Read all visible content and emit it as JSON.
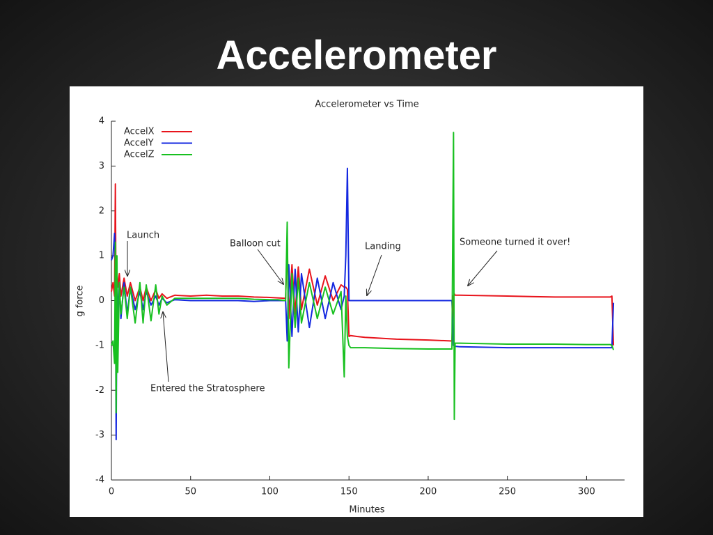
{
  "slide_title": "Accelerometer",
  "chart_data": {
    "type": "line",
    "title": "Accelerometer vs Time",
    "x_label": "Minutes",
    "y_label": "g force",
    "x": [
      0,
      1,
      2,
      2.5,
      3,
      3.5,
      4,
      5,
      6,
      8,
      10,
      12,
      15,
      18,
      20,
      22,
      25,
      28,
      30,
      32,
      35,
      40,
      50,
      60,
      70,
      80,
      90,
      100,
      105,
      110,
      111,
      112,
      114,
      116,
      118,
      120,
      125,
      130,
      135,
      140,
      145,
      147,
      148,
      149,
      150,
      151,
      155,
      160,
      180,
      200,
      215,
      216,
      216.5,
      217,
      220,
      250,
      280,
      300,
      310,
      315,
      316,
      317
    ],
    "series": [
      {
        "name": "AccelX",
        "color": "#e8141c",
        "values": [
          0.2,
          0.4,
          0.1,
          2.6,
          -0.5,
          0.6,
          0.3,
          0.6,
          0.1,
          0.5,
          0.1,
          0.4,
          0.0,
          0.3,
          0.0,
          0.3,
          0.0,
          0.25,
          0.05,
          0.15,
          0.05,
          0.12,
          0.1,
          0.12,
          0.1,
          0.1,
          0.08,
          0.07,
          0.06,
          0.05,
          1.3,
          -0.4,
          0.8,
          -0.3,
          0.75,
          -0.2,
          0.7,
          -0.1,
          0.55,
          0.0,
          0.35,
          0.3,
          0.3,
          0.25,
          -0.8,
          -0.78,
          -0.8,
          -0.82,
          -0.86,
          -0.88,
          -0.9,
          0.1,
          0.15,
          0.12,
          0.12,
          0.1,
          0.08,
          0.08,
          0.08,
          0.08,
          0.1,
          -1.0
        ]
      },
      {
        "name": "AccelY",
        "color": "#1428e0",
        "values": [
          0.9,
          1.0,
          1.5,
          0.8,
          -3.1,
          0.4,
          -0.4,
          0.4,
          -0.4,
          0.4,
          -0.3,
          0.3,
          -0.2,
          0.2,
          -0.2,
          0.2,
          -0.1,
          0.1,
          -0.1,
          0.05,
          -0.05,
          0.02,
          0.0,
          0.0,
          0.0,
          0.0,
          -0.02,
          0.0,
          0.0,
          0.0,
          -0.9,
          0.8,
          -0.8,
          0.7,
          -0.7,
          0.6,
          -0.6,
          0.5,
          -0.4,
          0.4,
          -0.2,
          0.1,
          1.0,
          2.95,
          0.0,
          0.0,
          0.0,
          0.0,
          0.0,
          0.0,
          0.0,
          -1.0,
          -1.0,
          -1.02,
          -1.03,
          -1.05,
          -1.05,
          -1.05,
          -1.05,
          -1.05,
          -1.05,
          -0.05
        ]
      },
      {
        "name": "AccelZ",
        "color": "#18c020",
        "values": [
          -1.0,
          -0.9,
          -1.4,
          1.3,
          -2.5,
          1.0,
          -1.6,
          0.4,
          -0.3,
          0.3,
          -0.4,
          0.3,
          -0.5,
          0.4,
          -0.5,
          0.35,
          -0.45,
          0.35,
          -0.3,
          0.1,
          -0.1,
          0.05,
          0.05,
          0.05,
          0.05,
          0.05,
          0.03,
          0.02,
          0.02,
          0.0,
          1.75,
          -1.5,
          0.6,
          -0.6,
          0.5,
          -0.5,
          0.4,
          -0.4,
          0.3,
          -0.3,
          0.2,
          -1.7,
          0.1,
          -0.8,
          -1.0,
          -1.05,
          -1.05,
          -1.05,
          -1.07,
          -1.08,
          -1.08,
          3.75,
          -2.65,
          -0.95,
          -0.95,
          -0.97,
          -0.97,
          -0.98,
          -0.98,
          -0.98,
          -1.0,
          -1.1
        ]
      }
    ],
    "xlim": [
      0,
      324
    ],
    "ylim": [
      -4,
      4
    ],
    "xticks": [
      0,
      50,
      100,
      150,
      200,
      250,
      300
    ],
    "yticks": [
      -4,
      -3,
      -2,
      -1,
      0,
      1,
      2,
      3,
      4
    ],
    "legend": "top-left",
    "annotations": [
      "Launch",
      "Balloon cut",
      "Landing",
      "Someone turned it over!",
      "Entered the Stratosphere"
    ]
  }
}
